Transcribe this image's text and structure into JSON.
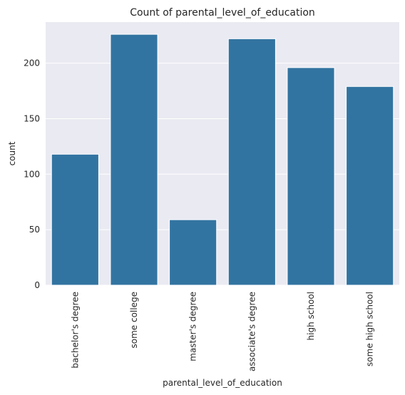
{
  "chart_data": {
    "type": "bar",
    "title": "Count of parental_level_of_education",
    "xlabel": "parental_level_of_education",
    "ylabel": "count",
    "categories": [
      "bachelor's degree",
      "some college",
      "master's degree",
      "associate's degree",
      "high school",
      "some high school"
    ],
    "values": [
      118,
      226,
      59,
      222,
      196,
      179
    ],
    "ylim": [
      0,
      237
    ],
    "yticks": [
      0,
      50,
      100,
      150,
      200
    ],
    "grid": true,
    "colors": {
      "bar": "#3274a1",
      "background": "#eaeaf2",
      "grid": "#ffffff"
    }
  }
}
